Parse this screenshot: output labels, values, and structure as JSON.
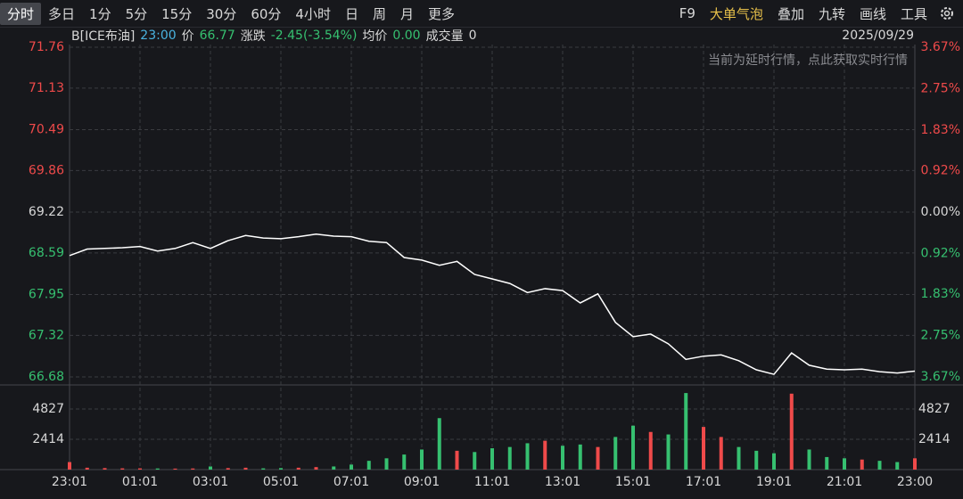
{
  "toolbar": {
    "periods": [
      "分时",
      "多日",
      "1分",
      "5分",
      "15分",
      "30分",
      "60分",
      "4小时",
      "日",
      "周",
      "月",
      "更多"
    ],
    "tools": [
      "F9",
      "大单气泡",
      "叠加",
      "九转",
      "画线",
      "工具"
    ]
  },
  "info": {
    "symbol": "B[ICE布油]",
    "time": "23:00",
    "price_label": "价",
    "price": "66.77",
    "change_label": "涨跌",
    "change": "-2.45(-3.54%)",
    "avg_label": "均价",
    "avg": "0.00",
    "volume_label": "成交量",
    "volume": "0",
    "date": "2025/09/29"
  },
  "notice": "当前为延时行情，点此获取实时行情",
  "chart_data": [
    {
      "type": "line",
      "color": "#ffffff",
      "grid": true,
      "categories": [
        "23:01",
        null,
        null,
        null,
        "01:01",
        null,
        null,
        null,
        "03:01",
        null,
        null,
        null,
        "05:01",
        null,
        null,
        null,
        "07:01",
        null,
        null,
        null,
        "09:01",
        null,
        null,
        null,
        "11:01",
        null,
        null,
        null,
        "13:01",
        null,
        null,
        null,
        "15:01",
        null,
        null,
        null,
        "17:01",
        null,
        null,
        null,
        "19:01",
        null,
        null,
        null,
        "21:01",
        null,
        null,
        null,
        "23:00"
      ],
      "values": [
        68.55,
        68.65,
        68.66,
        68.67,
        68.69,
        68.62,
        68.66,
        68.75,
        68.66,
        68.78,
        68.86,
        68.82,
        68.81,
        68.84,
        68.88,
        68.85,
        68.84,
        68.77,
        68.75,
        68.52,
        68.48,
        68.4,
        68.46,
        68.26,
        68.19,
        68.12,
        67.98,
        68.04,
        68.01,
        67.82,
        67.96,
        67.52,
        67.3,
        67.34,
        67.19,
        66.95,
        67.0,
        67.02,
        66.93,
        66.79,
        66.72,
        67.05,
        66.86,
        66.8,
        66.79,
        66.8,
        66.76,
        66.74,
        66.77
      ],
      "ylim": [
        66.68,
        71.76
      ],
      "yticks": [
        71.76,
        71.13,
        70.49,
        69.86,
        69.22,
        68.59,
        67.95,
        67.32,
        66.68
      ],
      "y2lim": [
        -3.67,
        3.67
      ],
      "y2ticks": [
        {
          "value": 3.67,
          "label": "3.67%"
        },
        {
          "value": 2.75,
          "label": "2.75%"
        },
        {
          "value": 1.83,
          "label": "1.83%"
        },
        {
          "value": 0.92,
          "label": "0.92%"
        },
        {
          "value": 0,
          "label": "0.00%"
        },
        {
          "value": -0.92,
          "label": "0.92%"
        },
        {
          "value": -1.83,
          "label": "1.83%"
        },
        {
          "value": -2.75,
          "label": "2.75%"
        },
        {
          "value": -3.67,
          "label": "3.67%"
        }
      ]
    },
    {
      "type": "bar",
      "grid": true,
      "values": [
        600,
        150,
        120,
        100,
        100,
        90,
        80,
        90,
        250,
        120,
        150,
        100,
        120,
        150,
        200,
        250,
        400,
        700,
        900,
        1200,
        1600,
        4100,
        1500,
        1400,
        1700,
        1800,
        2100,
        2300,
        1900,
        2000,
        1800,
        2600,
        3500,
        3000,
        2800,
        6100,
        3400,
        2600,
        1800,
        1500,
        1300,
        6050,
        1600,
        1000,
        900,
        800,
        700,
        600,
        900
      ],
      "ylim": [
        0,
        6390
      ],
      "yticks": [
        2414,
        4827
      ]
    }
  ]
}
